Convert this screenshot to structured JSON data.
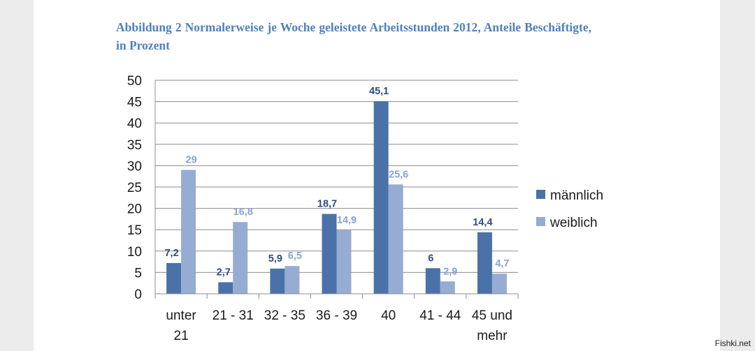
{
  "chart_data": {
    "type": "bar",
    "title": "Abbildung 2 Normalerweise je Woche geleistete Arbeitsstunden 2012, Anteile Beschäftigte, in Prozent",
    "categories": [
      [
        "unter",
        "21"
      ],
      [
        "21 - 31"
      ],
      [
        "32 - 35"
      ],
      [
        "36 - 39"
      ],
      [
        "40"
      ],
      [
        "41 - 44"
      ],
      [
        "45 und",
        "mehr"
      ]
    ],
    "series": [
      {
        "name": "männlich",
        "values": [
          7.2,
          2.7,
          5.9,
          18.7,
          45.1,
          6,
          14.4
        ],
        "labels": [
          "7,2",
          "2,7",
          "5,9",
          "18,7",
          "45,1",
          "6",
          "14,4"
        ],
        "color": "#4a72a8",
        "label_color": "#2e4e7e"
      },
      {
        "name": "weiblich",
        "values": [
          29,
          16.8,
          6.5,
          14.9,
          25.6,
          2.9,
          4.7
        ],
        "labels": [
          "29",
          "16,8",
          "6,5",
          "14,9",
          "25,6",
          "2,9",
          "4,7"
        ],
        "color": "#96acd3",
        "label_color": "#8aa4cf"
      }
    ],
    "ylim": [
      0,
      50
    ],
    "yticks": [
      0,
      5,
      10,
      15,
      20,
      25,
      30,
      35,
      40,
      45,
      50
    ],
    "grid": true,
    "legend": "right"
  },
  "watermark": "Fishki.net"
}
